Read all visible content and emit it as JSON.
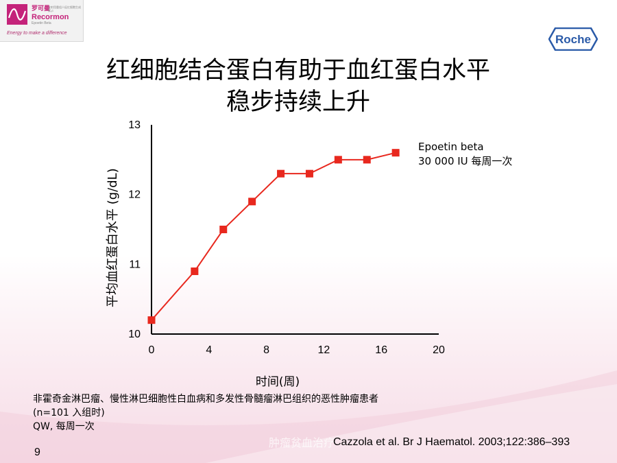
{
  "logo": {
    "brand_cn": "罗可曼",
    "brand_cn_desc": "注射用重组人促红细胞生成素-β",
    "brand_en": "Recormon",
    "brand_en_sub": "Epoetin Beta",
    "tagline": "Energy to make a difference"
  },
  "roche": {
    "label": "Roche"
  },
  "title": {
    "line1": "红细胞结合蛋白有助于血红蛋白水平",
    "line2": "稳步持续上升"
  },
  "chart_data": {
    "type": "line",
    "title": "",
    "xlabel": "时间(周)",
    "ylabel": "平均血红蛋白水平 (g/dL)",
    "xlim": [
      0,
      20
    ],
    "ylim": [
      10,
      13
    ],
    "xticks": [
      0,
      4,
      8,
      12,
      16,
      20
    ],
    "yticks": [
      10,
      11,
      12,
      13
    ],
    "grid": false,
    "color": "#e8281e",
    "series": [
      {
        "name": "Epoetin beta 30 000 IU 每周一次",
        "x": [
          0,
          3,
          5,
          7,
          9,
          11,
          13,
          15,
          17
        ],
        "y": [
          10.2,
          10.9,
          11.5,
          11.9,
          12.3,
          12.3,
          12.5,
          12.5,
          12.6
        ]
      }
    ]
  },
  "legend": {
    "line1": "Epoetin beta",
    "line2": "30 000 IU 每周一次"
  },
  "notes": {
    "line1": "非霍奇金淋巴瘤、慢性淋巴细胞性白血病和多发性骨髓瘤淋巴组织的恶性肿瘤患者",
    "line2": "(n=101 入组时)",
    "line3": "QW, 每周一次"
  },
  "watermark": "肿瘤贫血治疗",
  "citation": "Cazzola et al. Br J Haematol. 2003;122:386–393",
  "page_number": "9"
}
